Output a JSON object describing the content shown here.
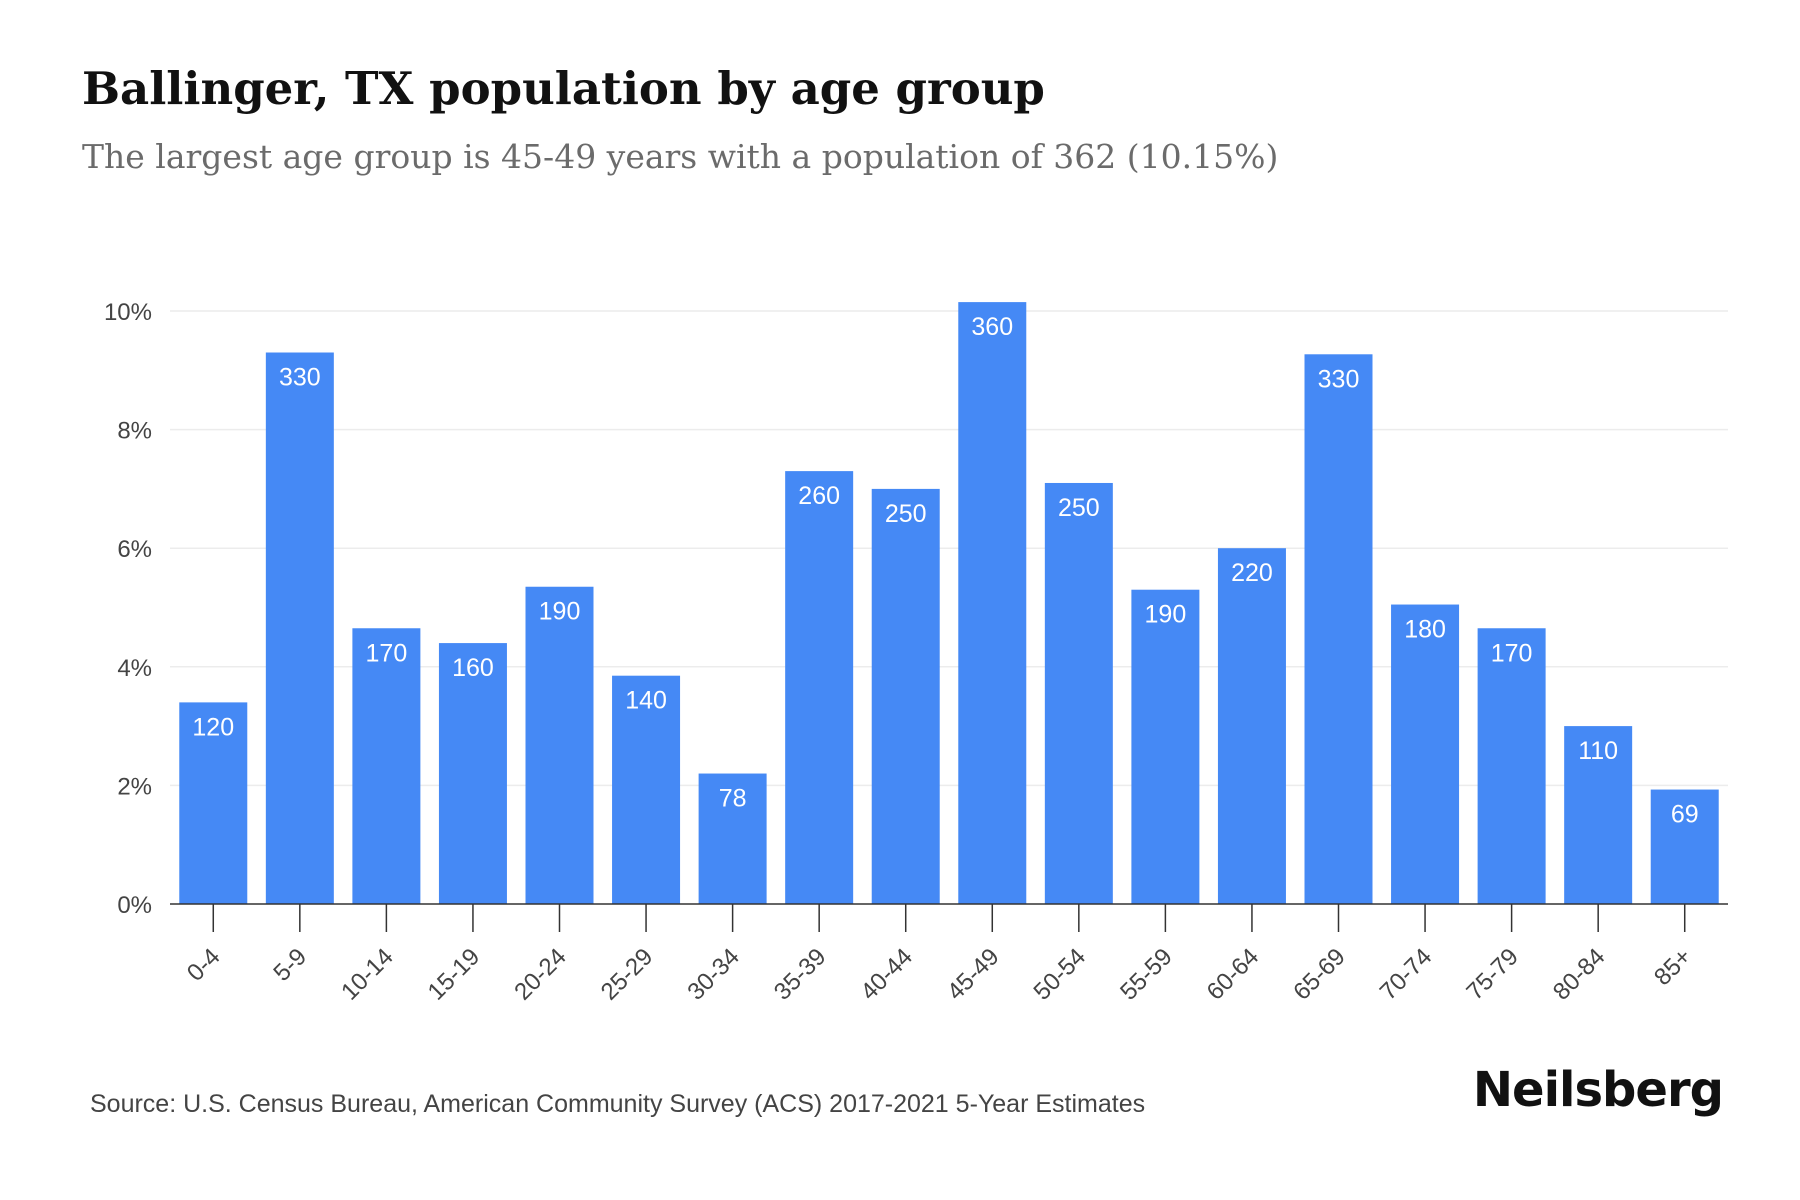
{
  "header": {
    "title": "Ballinger, TX population by age group",
    "subtitle": "The largest age group is 45-49 years with a population of 362 (10.15%)"
  },
  "footer": {
    "source": "Source: U.S. Census Bureau, American Community Survey (ACS) 2017-2021 5-Year Estimates",
    "brand": "Neilsberg"
  },
  "colors": {
    "bar": "#4589f5",
    "grid": "#ececec",
    "axis": "#333333",
    "tick_text": "#444444",
    "bar_label": "#ffffff"
  },
  "chart_data": {
    "type": "bar",
    "title": "Ballinger, TX population by age group",
    "subtitle": "The largest age group is 45-49 years with a population of 362 (10.15%)",
    "xlabel": "",
    "ylabel": "",
    "categories": [
      "0-4",
      "5-9",
      "10-14",
      "15-19",
      "20-24",
      "25-29",
      "30-34",
      "35-39",
      "40-44",
      "45-49",
      "50-54",
      "55-59",
      "60-64",
      "65-69",
      "70-74",
      "75-79",
      "80-84",
      "85+"
    ],
    "values": [
      3.4,
      9.3,
      4.65,
      4.4,
      5.35,
      3.85,
      2.2,
      7.3,
      7.0,
      10.15,
      7.1,
      5.3,
      6.0,
      9.27,
      5.05,
      4.65,
      3.0,
      1.93
    ],
    "data_labels": [
      "120",
      "330",
      "170",
      "160",
      "190",
      "140",
      "78",
      "260",
      "250",
      "360",
      "250",
      "190",
      "220",
      "330",
      "180",
      "170",
      "110",
      "69"
    ],
    "ylim": [
      0,
      10
    ],
    "yticks": [
      0,
      2,
      4,
      6,
      8,
      10
    ],
    "ytick_labels": [
      "0%",
      "2%",
      "4%",
      "6%",
      "8%",
      "10%"
    ],
    "grid": true,
    "legend": "none"
  }
}
